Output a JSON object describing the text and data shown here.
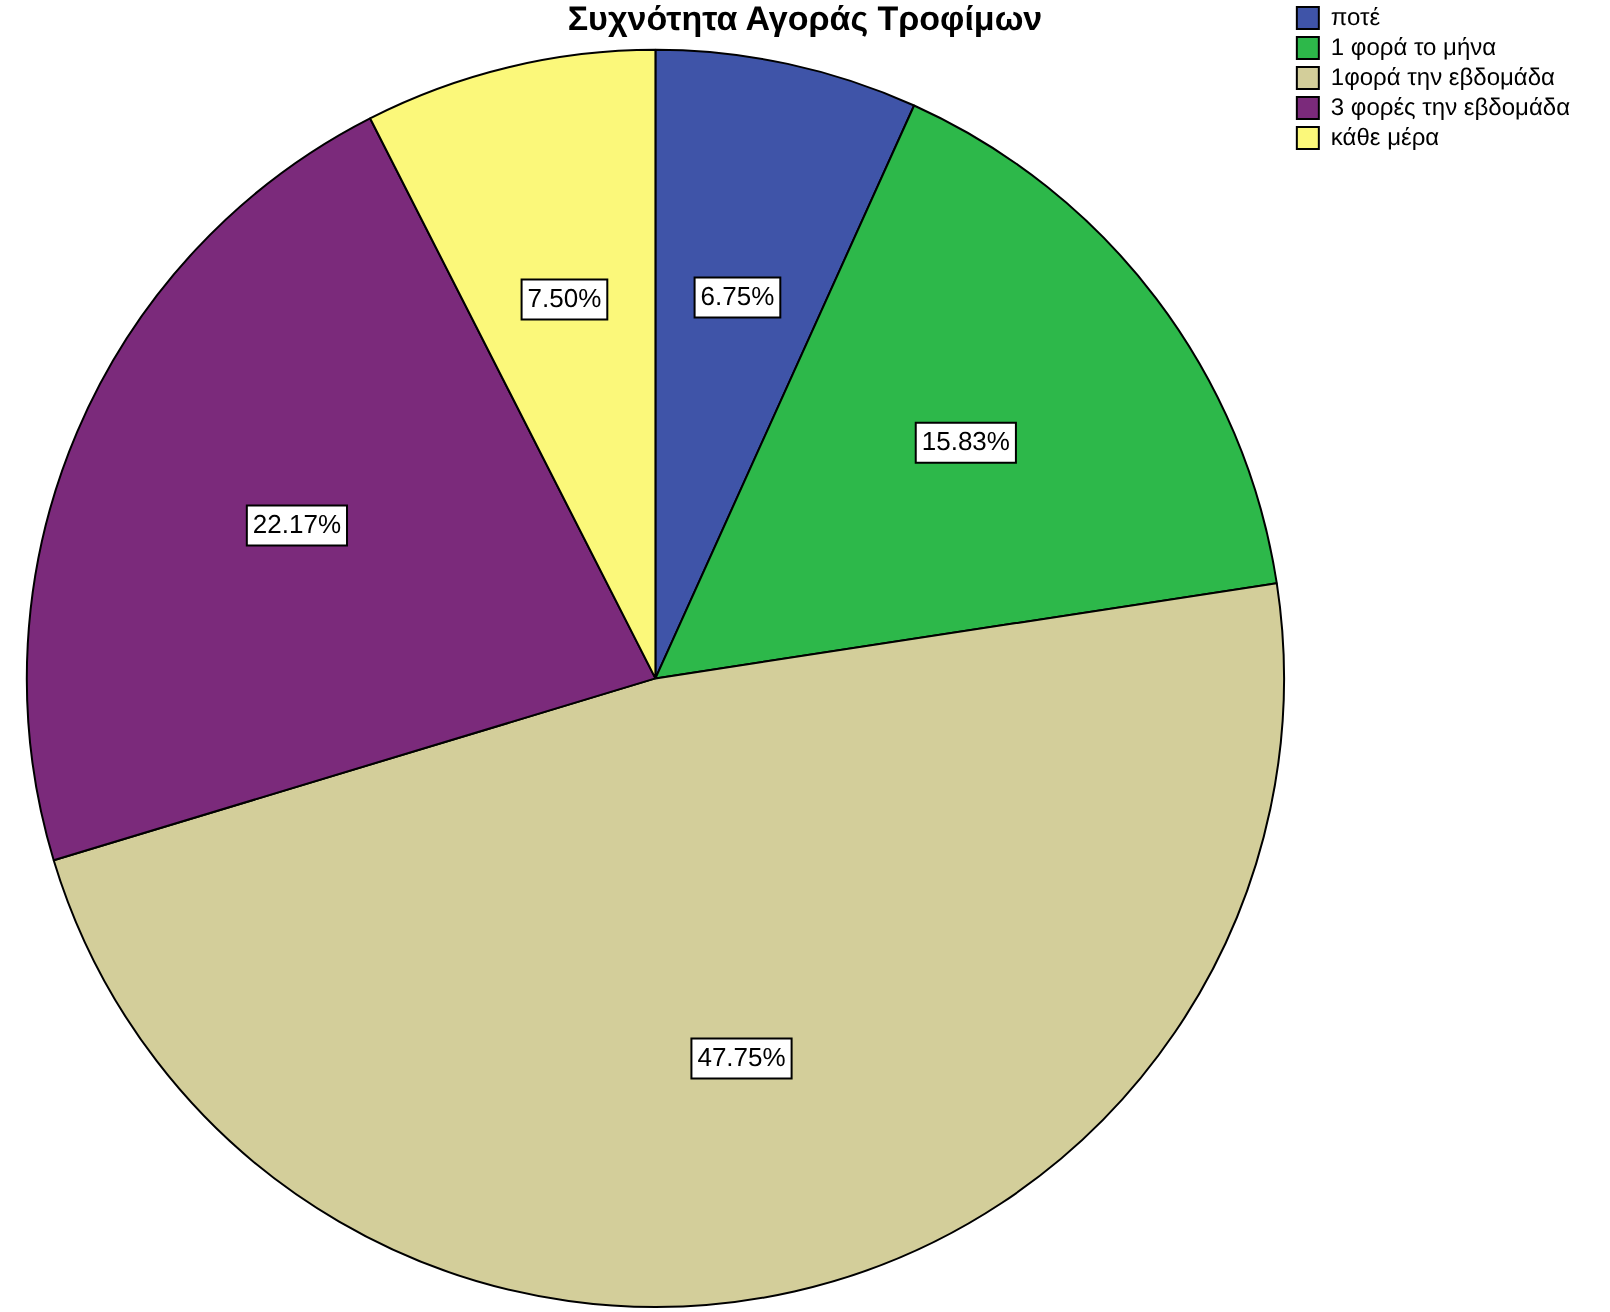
{
  "chart_data": {
    "type": "pie",
    "title": "Συχνότητα Αγοράς Τροφίμων",
    "categories": [
      "ποτέ",
      "1 φορά το μήνα",
      "1φορά την εβδομάδα",
      "3 φορές την εβδομάδα",
      "κάθε μέρα"
    ],
    "values": [
      6.75,
      15.83,
      47.75,
      22.17,
      7.5
    ],
    "value_labels": [
      "6.75%",
      "15.83%",
      "47.75%",
      "22.17%",
      "7.50%"
    ],
    "colors": [
      "#3f54a8",
      "#2db84a",
      "#d3ce9a",
      "#7b2a7b",
      "#fbf87a"
    ],
    "legend": "top right"
  }
}
